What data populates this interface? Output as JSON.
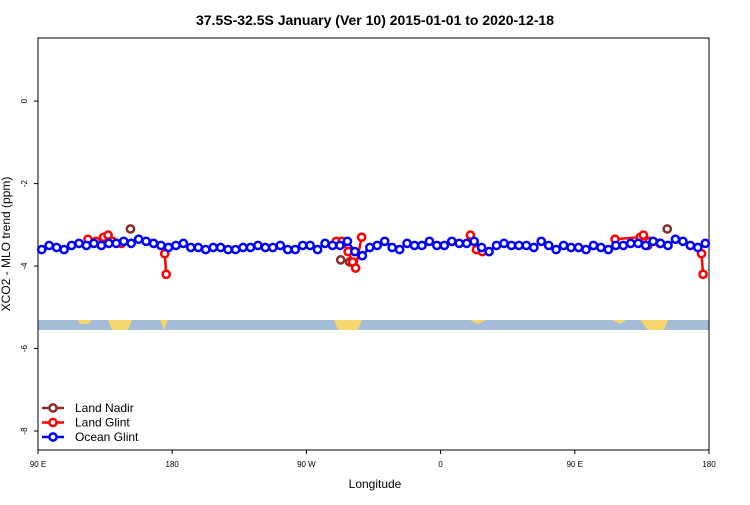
{
  "chart_data": {
    "type": "line",
    "title": "37.5S-32.5S January (Ver 10)   2015-01-01 to 2020-12-18",
    "x_label": "Longitude",
    "y_label": "XCO2 - MLO trend (ppm)",
    "xlim": [
      90,
      540
    ],
    "ylim": [
      -8.46,
      1.53
    ],
    "xticks": [
      {
        "value": 90,
        "label": "90 E"
      },
      180,
      {
        "value": 270,
        "label": "90 W"
      },
      {
        "value": 360,
        "label": "0"
      },
      {
        "value": 450,
        "label": "90 E"
      },
      {
        "value": 540,
        "label": "180"
      }
    ],
    "yticks": [
      0,
      -2,
      -4,
      -6,
      -8
    ],
    "legend": "bottom-left",
    "series": [
      {
        "name": "Land Nadir",
        "color": "#8b2a2a",
        "x": [
          152,
          null,
          293,
          299,
          null,
          499,
          null,
          512
        ],
        "values": [
          -3.1,
          null,
          -3.85,
          -3.9,
          null,
          -3.5,
          null,
          -3.1
        ]
      },
      {
        "name": "Land Glint",
        "color": "#ff0000",
        "x": [
          123.5,
          129,
          134,
          137,
          140,
          146,
          null,
          175,
          176,
          null,
          290,
          294,
          298,
          301,
          303,
          307,
          null,
          380,
          384,
          388,
          null,
          477,
          494,
          496,
          500,
          507,
          null,
          535,
          536
        ],
        "values": [
          -3.35,
          -3.4,
          -3.3,
          -3.25,
          -3.4,
          -3.45,
          null,
          -3.7,
          -4.2,
          null,
          -3.4,
          -3.4,
          -3.65,
          -3.9,
          -4.05,
          -3.3,
          null,
          -3.25,
          -3.6,
          -3.65,
          null,
          -3.35,
          -3.3,
          -3.25,
          -3.4,
          -3.45,
          null,
          -3.7,
          -4.2
        ]
      },
      {
        "name": "Ocean Glint",
        "color": "#0000ff",
        "x": [
          92.5,
          97.5,
          102.5,
          107.5,
          112.5,
          117.5,
          122.5,
          127.5,
          132.5,
          137.5,
          142.5,
          147.5,
          152.5,
          157.5,
          162.5,
          167.5,
          172.5,
          177.5,
          182.5,
          187.5,
          192.5,
          197.5,
          202.5,
          207.5,
          212.5,
          217.5,
          222.5,
          227.5,
          232.5,
          237.5,
          242.5,
          247.5,
          252.5,
          257.5,
          262.5,
          267.5,
          272.5,
          277.5,
          282.5,
          287.5,
          292.5,
          297.5,
          302.5,
          307.5,
          312.5,
          317.5,
          322.5,
          327.5,
          332.5,
          337.5,
          342.5,
          347.5,
          352.5,
          357.5,
          362.5,
          367.5,
          372.5,
          377.5,
          382.5,
          387.5,
          392.5,
          397.5,
          402.5,
          407.5,
          412.5,
          417.5,
          422.5,
          427.5,
          432.5,
          437.5,
          442.5,
          447.5,
          452.5,
          457.5,
          462.5,
          467.5,
          472.5,
          477.5,
          482.5,
          487.5,
          492.5,
          497.5,
          502.5,
          507.5,
          512.5,
          517.5,
          522.5,
          527.5,
          532.5,
          537.5
        ],
        "values": [
          -3.6,
          -3.5,
          -3.55,
          -3.6,
          -3.5,
          -3.45,
          -3.5,
          -3.45,
          -3.5,
          -3.45,
          -3.45,
          -3.4,
          -3.45,
          -3.35,
          -3.4,
          -3.45,
          -3.5,
          -3.55,
          -3.5,
          -3.45,
          -3.55,
          -3.55,
          -3.6,
          -3.55,
          -3.55,
          -3.6,
          -3.6,
          -3.55,
          -3.55,
          -3.5,
          -3.55,
          -3.55,
          -3.5,
          -3.6,
          -3.6,
          -3.5,
          -3.5,
          -3.6,
          -3.45,
          -3.5,
          -3.5,
          -3.4,
          -3.65,
          -3.75,
          -3.55,
          -3.5,
          -3.4,
          -3.55,
          -3.6,
          -3.45,
          -3.5,
          -3.5,
          -3.4,
          -3.5,
          -3.5,
          -3.4,
          -3.45,
          -3.45,
          -3.4,
          -3.55,
          -3.65,
          -3.5,
          -3.45,
          -3.5,
          -3.5,
          -3.5,
          -3.55,
          -3.4,
          -3.5,
          -3.6,
          -3.5,
          -3.55,
          -3.55,
          -3.6,
          -3.5,
          -3.55,
          -3.6,
          -3.5,
          -3.5,
          -3.45,
          -3.45,
          -3.5,
          -3.4,
          -3.45,
          -3.5,
          -3.35,
          -3.4,
          -3.5,
          -3.55,
          -3.45
        ]
      }
    ]
  }
}
